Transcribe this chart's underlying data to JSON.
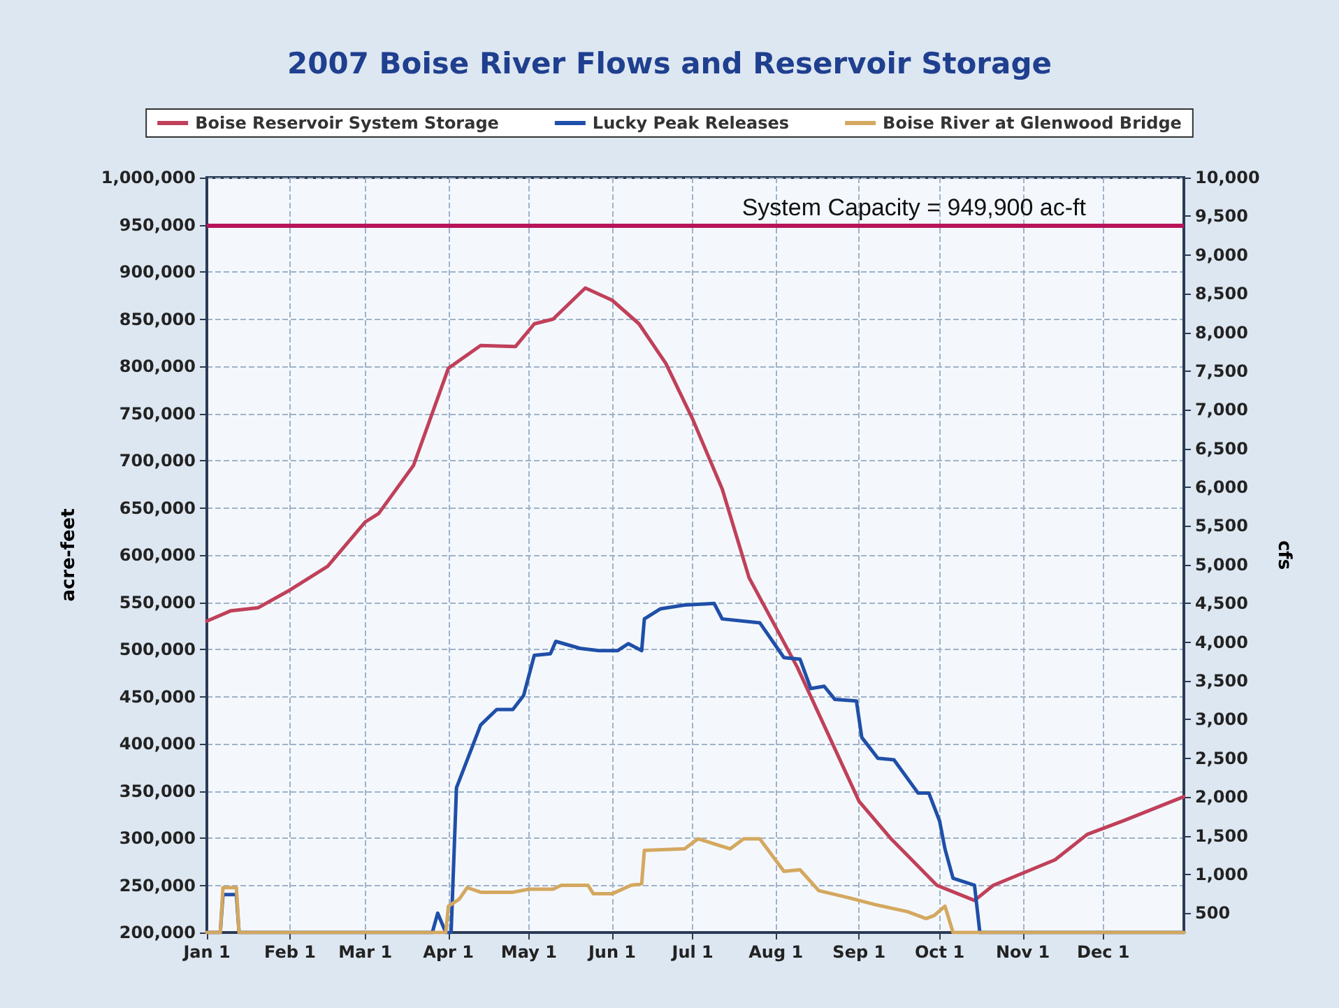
{
  "chart_data": {
    "type": "line",
    "title": "2007 Boise River Flows and Reservoir Storage",
    "ylabel": "acre-feet",
    "y2label": "cfs",
    "xlim": [
      "2007-01-01",
      "2007-12-31"
    ],
    "xticks": [
      {
        "value": "2007-01-01",
        "label": "Jan 1"
      },
      {
        "value": "2007-02-01",
        "label": "Feb 1"
      },
      {
        "value": "2007-03-01",
        "label": "Mar 1"
      },
      {
        "value": "2007-04-01",
        "label": "Apr 1"
      },
      {
        "value": "2007-05-01",
        "label": "May 1"
      },
      {
        "value": "2007-06-01",
        "label": "Jun 1"
      },
      {
        "value": "2007-07-01",
        "label": "Jul 1"
      },
      {
        "value": "2007-08-01",
        "label": "Aug 1"
      },
      {
        "value": "2007-09-01",
        "label": "Sep 1"
      },
      {
        "value": "2007-10-01",
        "label": "Oct 1"
      },
      {
        "value": "2007-11-01",
        "label": "Nov 1"
      },
      {
        "value": "2007-12-01",
        "label": "Dec 1"
      }
    ],
    "ylim": [
      200000,
      1000000
    ],
    "yticks": [
      {
        "value": 200000,
        "label": "200,000"
      },
      {
        "value": 250000,
        "label": "250,000"
      },
      {
        "value": 300000,
        "label": "300,000"
      },
      {
        "value": 350000,
        "label": "350,000"
      },
      {
        "value": 400000,
        "label": "400,000"
      },
      {
        "value": 450000,
        "label": "450,000"
      },
      {
        "value": 500000,
        "label": "500,000"
      },
      {
        "value": 550000,
        "label": "550,000"
      },
      {
        "value": 600000,
        "label": "600,000"
      },
      {
        "value": 650000,
        "label": "650,000"
      },
      {
        "value": 700000,
        "label": "700,000"
      },
      {
        "value": 750000,
        "label": "750,000"
      },
      {
        "value": 800000,
        "label": "800,000"
      },
      {
        "value": 850000,
        "label": "850,000"
      },
      {
        "value": 900000,
        "label": "900,000"
      },
      {
        "value": 950000,
        "label": "950,000"
      },
      {
        "value": 1000000,
        "label": "1,000,000"
      }
    ],
    "y2lim": [
      250,
      10000
    ],
    "y2ticks": [
      500,
      {
        "value": 1000,
        "label": "1,000"
      },
      {
        "value": 1500,
        "label": "1,500"
      },
      {
        "value": 2000,
        "label": "2,000"
      },
      {
        "value": 2500,
        "label": "2,500"
      },
      {
        "value": 3000,
        "label": "3,000"
      },
      {
        "value": 3500,
        "label": "3,500"
      },
      {
        "value": 4000,
        "label": "4,000"
      },
      {
        "value": 4500,
        "label": "4,500"
      },
      {
        "value": 5000,
        "label": "5,000"
      },
      {
        "value": 5500,
        "label": "5,500"
      },
      {
        "value": 6000,
        "label": "6,000"
      },
      {
        "value": 6500,
        "label": "6,500"
      },
      {
        "value": 7000,
        "label": "7,000"
      },
      {
        "value": 7500,
        "label": "7,500"
      },
      {
        "value": 8000,
        "label": "8,000"
      },
      {
        "value": 8500,
        "label": "8,500"
      },
      {
        "value": 9000,
        "label": "9,000"
      },
      {
        "value": 9500,
        "label": "9,500"
      },
      {
        "value": 10000,
        "label": "10,000"
      }
    ],
    "grid": true,
    "legend": "top",
    "marker": "none",
    "line_style": "solid",
    "ref_lines": [
      {
        "axis": "y",
        "value": 949900,
        "label": "System Capacity = 949,900 ac-ft",
        "color": "#b8145a"
      }
    ],
    "series": [
      {
        "name": "Boise Reservoir System Storage",
        "color": "#c0405a",
        "x": [
          "2007-01-01",
          "2007-01-10",
          "2007-01-20",
          "2007-02-01",
          "2007-02-15",
          "2007-03-01",
          "2007-03-06",
          "2007-03-19",
          "2007-04-01",
          "2007-04-13",
          "2007-04-26",
          "2007-05-03",
          "2007-05-10",
          "2007-05-22",
          "2007-06-01",
          "2007-06-11",
          "2007-06-21",
          "2007-07-01",
          "2007-07-12",
          "2007-07-22",
          "2007-08-09",
          "2007-09-01",
          "2007-09-13",
          "2007-09-30",
          "2007-10-14",
          "2007-10-21",
          "2007-11-13",
          "2007-11-25",
          "2007-12-09",
          "2007-12-31"
        ],
        "values": [
          530000,
          541000,
          544000,
          563000,
          588000,
          635000,
          644000,
          695000,
          798000,
          822000,
          821000,
          845000,
          850000,
          883000,
          870000,
          845000,
          803000,
          744000,
          670000,
          576000,
          481000,
          339000,
          299000,
          250000,
          234000,
          250000,
          277000,
          304000,
          319000,
          344000
        ]
      },
      {
        "name": "Lucky Peak Releases",
        "color": "#1f4fa8",
        "axis": "y2",
        "x": [
          "2007-01-01",
          "2007-01-06",
          "2007-01-07",
          "2007-01-12",
          "2007-01-13",
          "2007-03-26",
          "2007-03-28",
          "2007-03-31",
          "2007-04-02",
          "2007-04-04",
          "2007-04-10",
          "2007-04-13",
          "2007-04-19",
          "2007-04-25",
          "2007-04-29",
          "2007-05-03",
          "2007-05-09",
          "2007-05-11",
          "2007-05-20",
          "2007-05-27",
          "2007-06-03",
          "2007-06-07",
          "2007-06-12",
          "2007-06-13",
          "2007-06-19",
          "2007-06-28",
          "2007-07-09",
          "2007-07-12",
          "2007-07-26",
          "2007-08-04",
          "2007-08-10",
          "2007-08-14",
          "2007-08-19",
          "2007-08-23",
          "2007-08-31",
          "2007-09-02",
          "2007-09-08",
          "2007-09-14",
          "2007-09-23",
          "2007-09-27",
          "2007-10-01",
          "2007-10-03",
          "2007-10-06",
          "2007-10-14",
          "2007-10-16",
          "2007-12-31"
        ],
        "values": [
          250,
          250,
          740,
          740,
          250,
          250,
          500,
          250,
          250,
          2120,
          2660,
          2930,
          3130,
          3130,
          3310,
          3830,
          3850,
          4010,
          3920,
          3890,
          3890,
          3980,
          3890,
          4300,
          4430,
          4480,
          4500,
          4300,
          4250,
          3800,
          3780,
          3400,
          3430,
          3260,
          3240,
          2770,
          2500,
          2480,
          2050,
          2050,
          1690,
          1330,
          950,
          860,
          250,
          250
        ]
      },
      {
        "name": "Boise River at Glenwood Bridge",
        "color": "#d4a860",
        "axis": "y2",
        "x": [
          "2007-01-01",
          "2007-01-06",
          "2007-01-07",
          "2007-01-12",
          "2007-01-13",
          "2007-03-31",
          "2007-04-01",
          "2007-04-05",
          "2007-04-08",
          "2007-04-13",
          "2007-04-25",
          "2007-05-01",
          "2007-05-10",
          "2007-05-13",
          "2007-05-23",
          "2007-05-25",
          "2007-06-01",
          "2007-06-08",
          "2007-06-12",
          "2007-06-13",
          "2007-06-28",
          "2007-07-03",
          "2007-07-15",
          "2007-07-20",
          "2007-07-26",
          "2007-08-04",
          "2007-08-10",
          "2007-08-17",
          "2007-08-28",
          "2007-09-07",
          "2007-09-19",
          "2007-09-26",
          "2007-09-29",
          "2007-10-03",
          "2007-10-06",
          "2007-12-31"
        ],
        "values": [
          250,
          250,
          830,
          830,
          250,
          250,
          590,
          680,
          830,
          770,
          770,
          810,
          810,
          860,
          860,
          750,
          750,
          860,
          880,
          1310,
          1330,
          1460,
          1330,
          1460,
          1460,
          1040,
          1060,
          790,
          700,
          610,
          520,
          430,
          470,
          590,
          250,
          250
        ]
      }
    ]
  }
}
